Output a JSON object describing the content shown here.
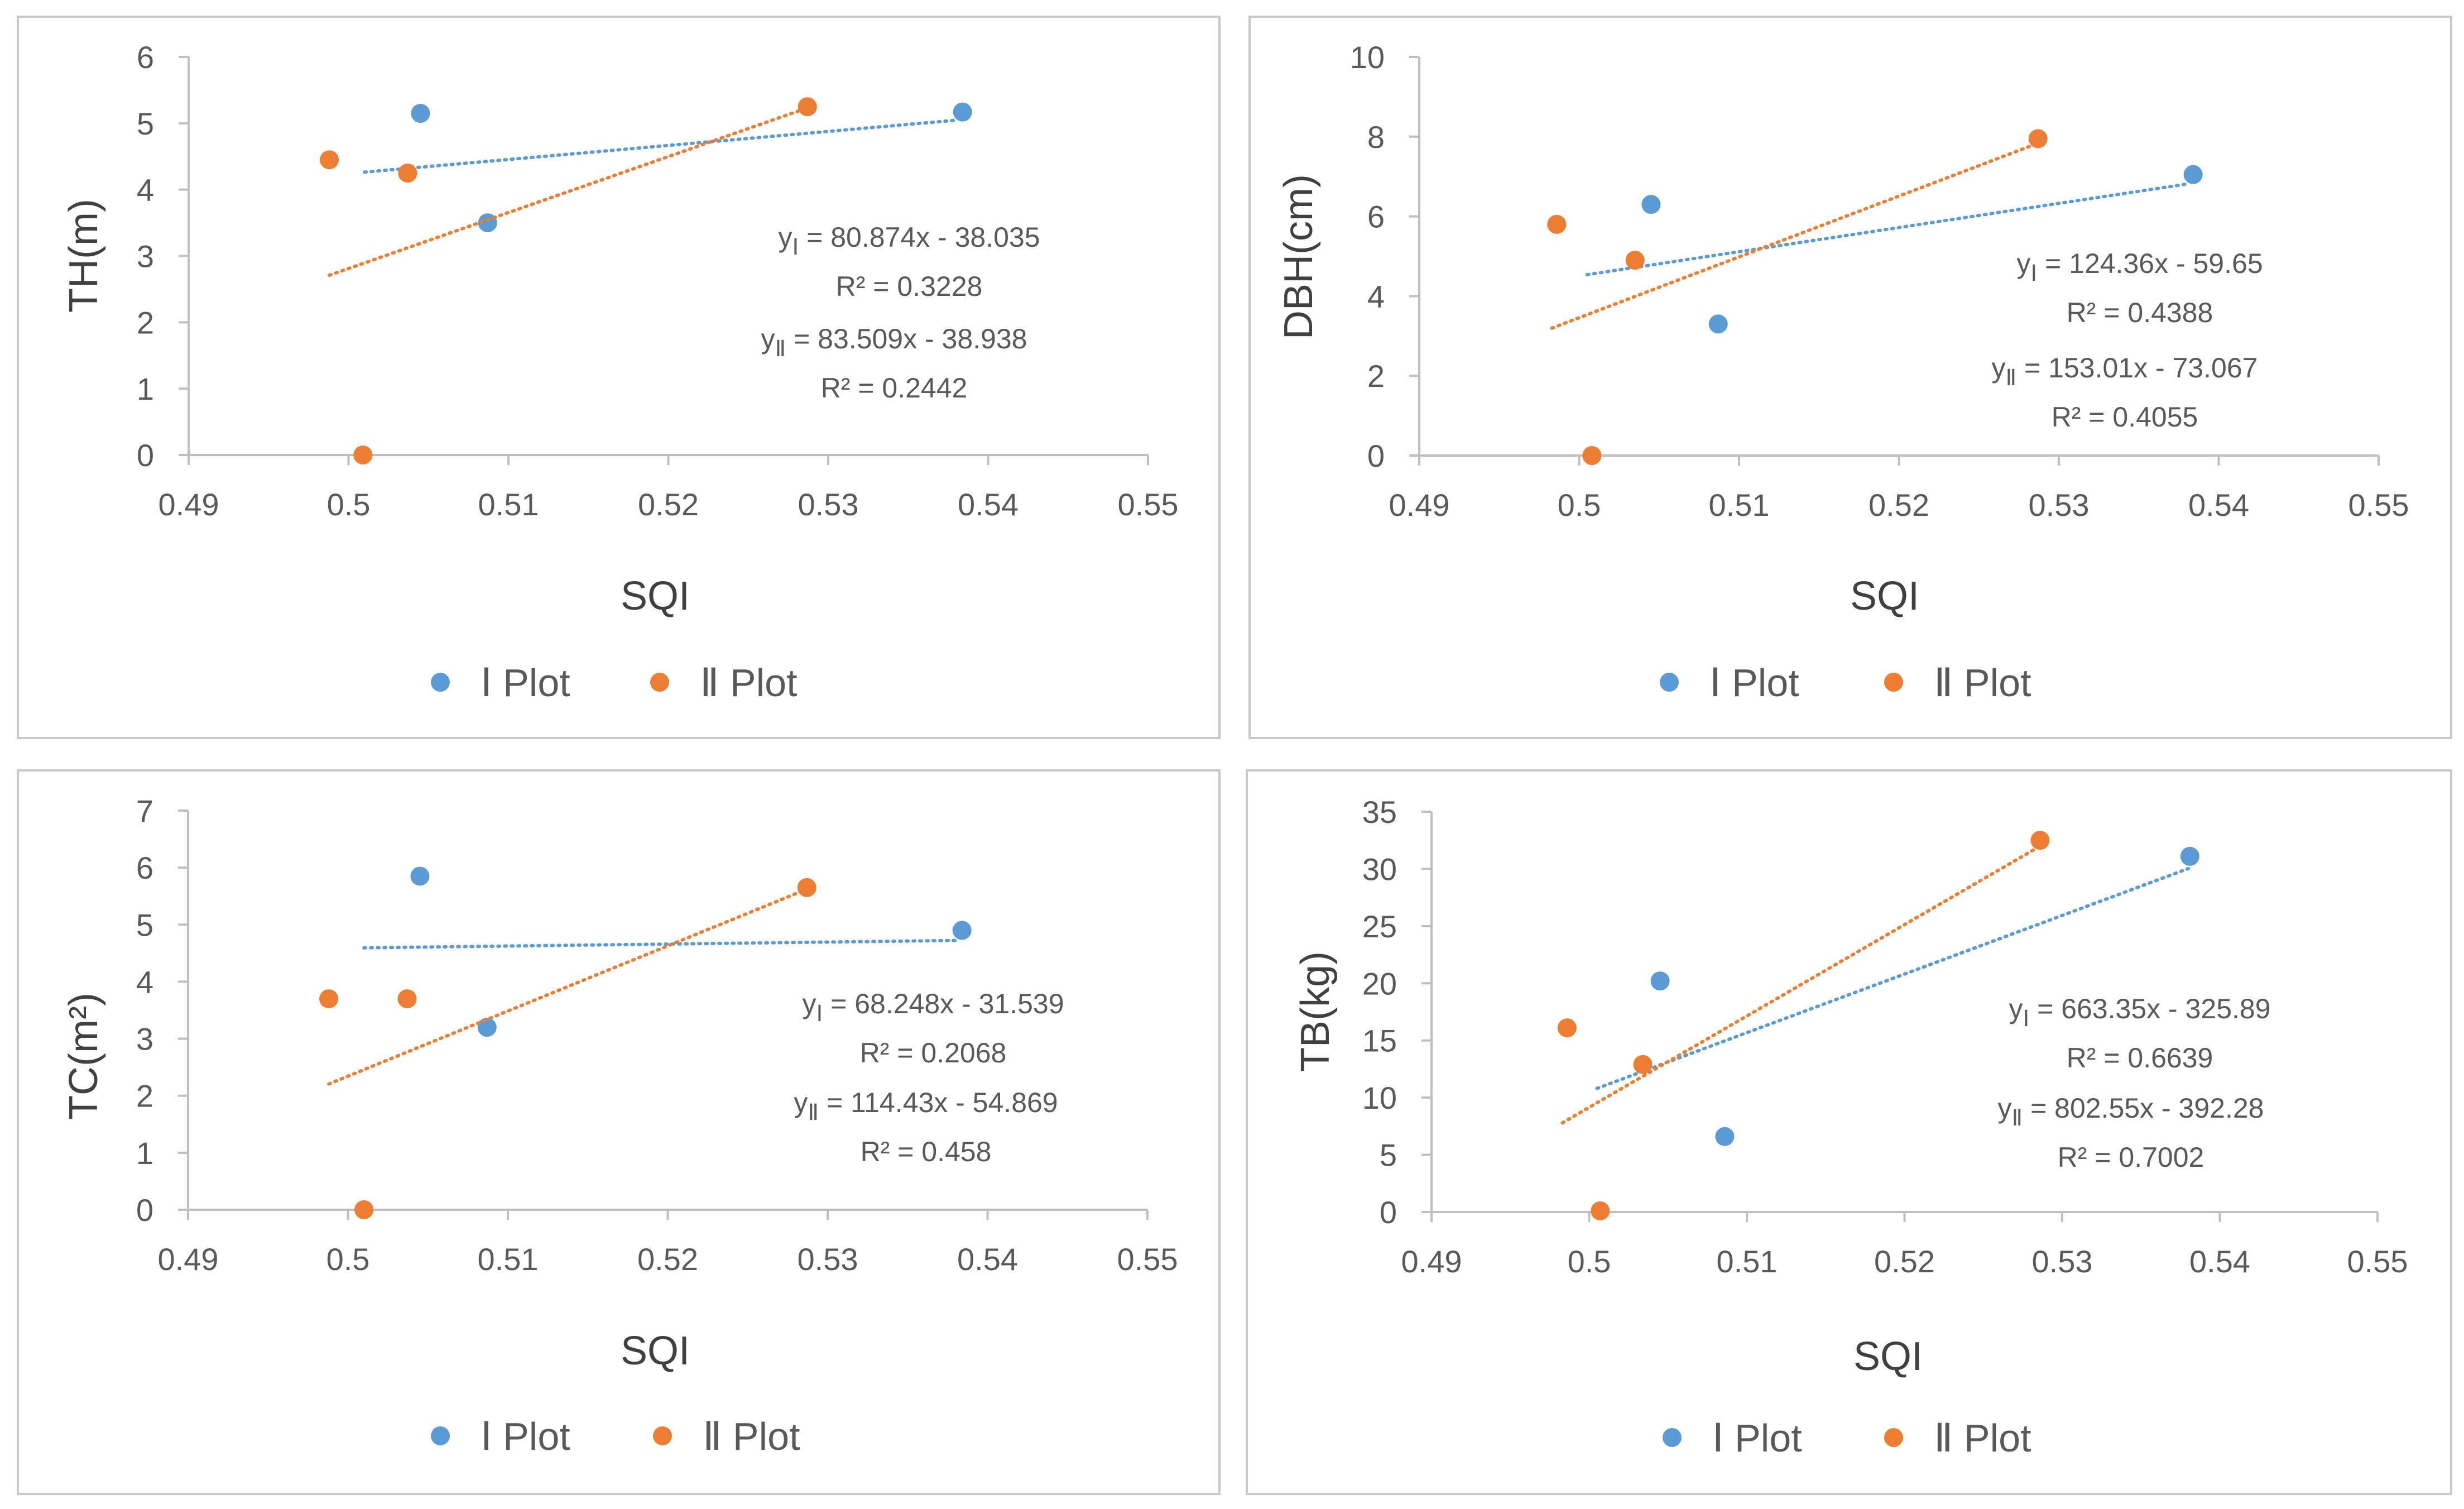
{
  "colors": {
    "series1": "#5b9bd5",
    "series2": "#ed7d31",
    "axis": "#bfbfbf",
    "text": "#595959",
    "border": "#c9c9c9"
  },
  "legend": [
    {
      "numeral": "Ⅰ",
      "label": "Plot"
    },
    {
      "numeral": "Ⅱ",
      "label": "Plot"
    }
  ],
  "chart_data": [
    {
      "type": "scatter",
      "title": "",
      "xlabel": "SQI",
      "ylabel": "TH(m)",
      "xlim": [
        0.49,
        0.55
      ],
      "ylim": [
        0,
        6
      ],
      "xticks": [
        "0.49",
        "0.5",
        "0.51",
        "0.52",
        "0.53",
        "0.54",
        "0.55"
      ],
      "yticks": [
        "0",
        "1",
        "2",
        "3",
        "4",
        "5",
        "6"
      ],
      "series": [
        {
          "name": "Ⅰ Plot",
          "x": [
            0.5045,
            0.5087,
            0.5384
          ],
          "y": [
            5.15,
            3.5,
            5.17
          ],
          "trend": {
            "x0": 0.501,
            "x1": 0.538,
            "eq_prefix": "y",
            "eq_sub": "Ⅰ",
            "eq_rest": " = 80.874x - 38.035",
            "r2": "R² = 0.3228"
          }
        },
        {
          "name": "Ⅱ Plot",
          "x": [
            0.4988,
            0.5009,
            0.5037,
            0.5287
          ],
          "y": [
            4.45,
            0.0,
            4.25,
            5.25
          ],
          "trend": {
            "x0": 0.4988,
            "x1": 0.5287,
            "eq_prefix": "y",
            "eq_sub": "Ⅱ",
            "eq_rest": " = 83.509x - 38.938",
            "r2": "R² = 0.2442"
          }
        }
      ]
    },
    {
      "type": "scatter",
      "title": "",
      "xlabel": "SQI",
      "ylabel": "DBH(cm)",
      "xlim": [
        0.49,
        0.55
      ],
      "ylim": [
        0,
        10
      ],
      "xticks": [
        "0.49",
        "0.5",
        "0.51",
        "0.52",
        "0.53",
        "0.54",
        "0.55"
      ],
      "yticks": [
        "0",
        "2",
        "4",
        "6",
        "8",
        "10"
      ],
      "series": [
        {
          "name": "Ⅰ Plot",
          "x": [
            0.5045,
            0.5087,
            0.5384
          ],
          "y": [
            6.3,
            3.3,
            7.05
          ],
          "trend": {
            "x0": 0.5005,
            "x1": 0.538,
            "eq_prefix": "y",
            "eq_sub": "Ⅰ",
            "eq_rest": " = 124.36x - 59.65",
            "r2": "R² = 0.4388"
          }
        },
        {
          "name": "Ⅱ Plot",
          "x": [
            0.4986,
            0.5008,
            0.5035,
            0.5287
          ],
          "y": [
            5.8,
            0.0,
            4.9,
            7.95
          ],
          "trend": {
            "x0": 0.4983,
            "x1": 0.5287,
            "eq_prefix": "y",
            "eq_sub": "Ⅱ",
            "eq_rest": " = 153.01x - 73.067",
            "r2": "R² = 0.4055"
          }
        }
      ]
    },
    {
      "type": "scatter",
      "title": "",
      "xlabel": "SQI",
      "ylabel": "TC(m²)",
      "xlim": [
        0.49,
        0.55
      ],
      "ylim": [
        0,
        7
      ],
      "xticks": [
        "0.49",
        "0.5",
        "0.51",
        "0.52",
        "0.53",
        "0.54",
        "0.55"
      ],
      "yticks": [
        "0",
        "1",
        "2",
        "3",
        "4",
        "5",
        "6",
        "7"
      ],
      "series": [
        {
          "name": "Ⅰ Plot",
          "x": [
            0.5045,
            0.5087,
            0.5384
          ],
          "y": [
            5.85,
            3.2,
            4.9
          ],
          "trend": {
            "x0": 0.501,
            "x1": 0.538,
            "eq_prefix": "y",
            "eq_sub": "Ⅰ",
            "eq_rest": " = 68.248x - 31.539",
            "r2": "R² = 0.2068"
          }
        },
        {
          "name": "Ⅱ Plot",
          "x": [
            0.4988,
            0.501,
            0.5037,
            0.5287
          ],
          "y": [
            3.7,
            0.0,
            3.7,
            5.65
          ],
          "trend": {
            "x0": 0.4988,
            "x1": 0.5287,
            "eq_prefix": "y",
            "eq_sub": "Ⅱ",
            "eq_rest": " = 114.43x - 54.869",
            "r2": "R² = 0.458"
          }
        }
      ]
    },
    {
      "type": "scatter",
      "title": "",
      "xlabel": "SQI",
      "ylabel": "TB(kg)",
      "xlim": [
        0.49,
        0.55
      ],
      "ylim": [
        0,
        35
      ],
      "xticks": [
        "0.49",
        "0.5",
        "0.51",
        "0.52",
        "0.53",
        "0.54",
        "0.55"
      ],
      "yticks": [
        "0",
        "5",
        "10",
        "15",
        "20",
        "25",
        "30",
        "35"
      ],
      "series": [
        {
          "name": "Ⅰ Plot",
          "x": [
            0.5045,
            0.5086,
            0.5381
          ],
          "y": [
            20.2,
            6.6,
            31.1
          ],
          "trend": {
            "x0": 0.5005,
            "x1": 0.538,
            "eq_prefix": "y",
            "eq_sub": "Ⅰ",
            "eq_rest": " = 663.35x - 325.89",
            "r2": "R² = 0.6639"
          }
        },
        {
          "name": "Ⅱ Plot",
          "x": [
            0.4986,
            0.5007,
            0.5034,
            0.5286
          ],
          "y": [
            16.1,
            0.1,
            12.9,
            32.5
          ],
          "trend": {
            "x0": 0.4983,
            "x1": 0.5286,
            "eq_prefix": "y",
            "eq_sub": "Ⅱ",
            "eq_rest": " = 802.55x - 392.28",
            "r2": "R² = 0.7002"
          }
        }
      ]
    }
  ]
}
